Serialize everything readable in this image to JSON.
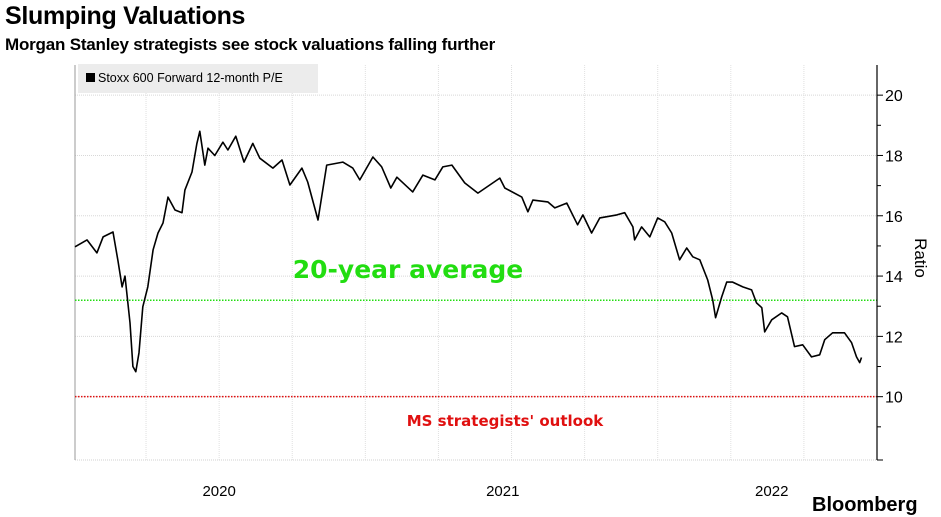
{
  "header": {
    "title": "Slumping Valuations",
    "subtitle": "Morgan Stanley strategists see stock valuations falling further"
  },
  "logo": "Bloomberg",
  "chart_data": {
    "type": "line",
    "title": "Slumping Valuations",
    "subtitle": "Morgan Stanley strategists see stock valuations falling further",
    "xlabel": "",
    "ylabel": "Ratio",
    "xlim": [
      2020.007,
      2022.75
    ],
    "ylim": [
      7.9,
      21.0
    ],
    "x_tick_labels": [
      {
        "label": "2020",
        "at": 2020.5
      },
      {
        "label": "2021",
        "at": 2021.47
      },
      {
        "label": "2022",
        "at": 2022.39
      }
    ],
    "x_gridlines": [
      2020.25,
      2020.5,
      2020.75,
      2021.0,
      2021.25,
      2021.5,
      2021.75,
      2022.0,
      2022.25,
      2022.5
    ],
    "y_ticks": [
      10,
      12,
      14,
      16,
      18,
      20
    ],
    "y_minor_ticks": [
      9,
      11,
      13,
      15,
      17,
      19
    ],
    "grid": true,
    "legend": {
      "placement": "top-left",
      "entries": [
        {
          "label": "Stoxx 600 Forward 12-month P/E",
          "color": "#000000"
        }
      ]
    },
    "series": [
      {
        "name": "Stoxx 600 Forward 12-month P/E",
        "color": "#000000",
        "points": [
          [
            2020.007,
            14.97
          ],
          [
            2020.048,
            15.2
          ],
          [
            2020.082,
            14.77
          ],
          [
            2020.103,
            15.3
          ],
          [
            2020.137,
            15.46
          ],
          [
            2020.154,
            14.5
          ],
          [
            2020.168,
            13.64
          ],
          [
            2020.178,
            14.0
          ],
          [
            2020.195,
            12.45
          ],
          [
            2020.205,
            11.0
          ],
          [
            2020.215,
            10.83
          ],
          [
            2020.226,
            11.46
          ],
          [
            2020.239,
            12.98
          ],
          [
            2020.256,
            13.64
          ],
          [
            2020.274,
            14.87
          ],
          [
            2020.291,
            15.43
          ],
          [
            2020.308,
            15.76
          ],
          [
            2020.325,
            16.62
          ],
          [
            2020.349,
            16.19
          ],
          [
            2020.373,
            16.1
          ],
          [
            2020.383,
            16.85
          ],
          [
            2020.407,
            17.45
          ],
          [
            2020.424,
            18.4
          ],
          [
            2020.434,
            18.8
          ],
          [
            2020.451,
            17.68
          ],
          [
            2020.462,
            18.24
          ],
          [
            2020.485,
            18.0
          ],
          [
            2020.513,
            18.44
          ],
          [
            2020.53,
            18.18
          ],
          [
            2020.557,
            18.64
          ],
          [
            2020.585,
            17.78
          ],
          [
            2020.615,
            18.4
          ],
          [
            2020.639,
            17.91
          ],
          [
            2020.684,
            17.58
          ],
          [
            2020.715,
            17.85
          ],
          [
            2020.742,
            17.02
          ],
          [
            2020.783,
            17.58
          ],
          [
            2020.803,
            17.12
          ],
          [
            2020.838,
            15.86
          ],
          [
            2020.868,
            17.68
          ],
          [
            2020.923,
            17.78
          ],
          [
            2020.957,
            17.58
          ],
          [
            2020.981,
            17.19
          ],
          [
            2021.026,
            17.95
          ],
          [
            2021.056,
            17.62
          ],
          [
            2021.087,
            16.92
          ],
          [
            2021.108,
            17.28
          ],
          [
            2021.162,
            16.79
          ],
          [
            2021.197,
            17.35
          ],
          [
            2021.238,
            17.19
          ],
          [
            2021.265,
            17.62
          ],
          [
            2021.296,
            17.68
          ],
          [
            2021.34,
            17.09
          ],
          [
            2021.385,
            16.75
          ],
          [
            2021.46,
            17.25
          ],
          [
            2021.477,
            16.92
          ],
          [
            2021.535,
            16.62
          ],
          [
            2021.556,
            16.13
          ],
          [
            2021.573,
            16.52
          ],
          [
            2021.624,
            16.46
          ],
          [
            2021.648,
            16.26
          ],
          [
            2021.689,
            16.42
          ],
          [
            2021.726,
            15.7
          ],
          [
            2021.744,
            16.03
          ],
          [
            2021.774,
            15.43
          ],
          [
            2021.802,
            15.93
          ],
          [
            2021.86,
            16.03
          ],
          [
            2021.887,
            16.1
          ],
          [
            2021.915,
            15.63
          ],
          [
            2021.921,
            15.2
          ],
          [
            2021.945,
            15.63
          ],
          [
            2021.973,
            15.3
          ],
          [
            2022.0,
            15.93
          ],
          [
            2022.024,
            15.8
          ],
          [
            2022.048,
            15.43
          ],
          [
            2022.075,
            14.54
          ],
          [
            2022.099,
            14.93
          ],
          [
            2022.12,
            14.64
          ],
          [
            2022.144,
            14.54
          ],
          [
            2022.171,
            13.87
          ],
          [
            2022.188,
            13.21
          ],
          [
            2022.198,
            12.62
          ],
          [
            2022.219,
            13.31
          ],
          [
            2022.236,
            13.8
          ],
          [
            2022.256,
            13.8
          ],
          [
            2022.291,
            13.64
          ],
          [
            2022.321,
            13.54
          ],
          [
            2022.338,
            13.11
          ],
          [
            2022.356,
            12.95
          ],
          [
            2022.366,
            12.15
          ],
          [
            2022.39,
            12.55
          ],
          [
            2022.424,
            12.78
          ],
          [
            2022.444,
            12.65
          ],
          [
            2022.468,
            11.66
          ],
          [
            2022.496,
            11.72
          ],
          [
            2022.526,
            11.32
          ],
          [
            2022.554,
            11.39
          ],
          [
            2022.571,
            11.89
          ],
          [
            2022.598,
            12.12
          ],
          [
            2022.639,
            12.12
          ],
          [
            2022.663,
            11.79
          ],
          [
            2022.68,
            11.32
          ],
          [
            2022.691,
            11.13
          ],
          [
            2022.697,
            11.3
          ]
        ]
      }
    ],
    "reference_lines": [
      {
        "name": "20-year average",
        "label": "20-year average",
        "value": 13.2,
        "color": "#22dd11"
      },
      {
        "name": "MS strategists' outlook",
        "label": "MS strategists' outlook",
        "value": 10.0,
        "color": "#e01010"
      }
    ]
  }
}
